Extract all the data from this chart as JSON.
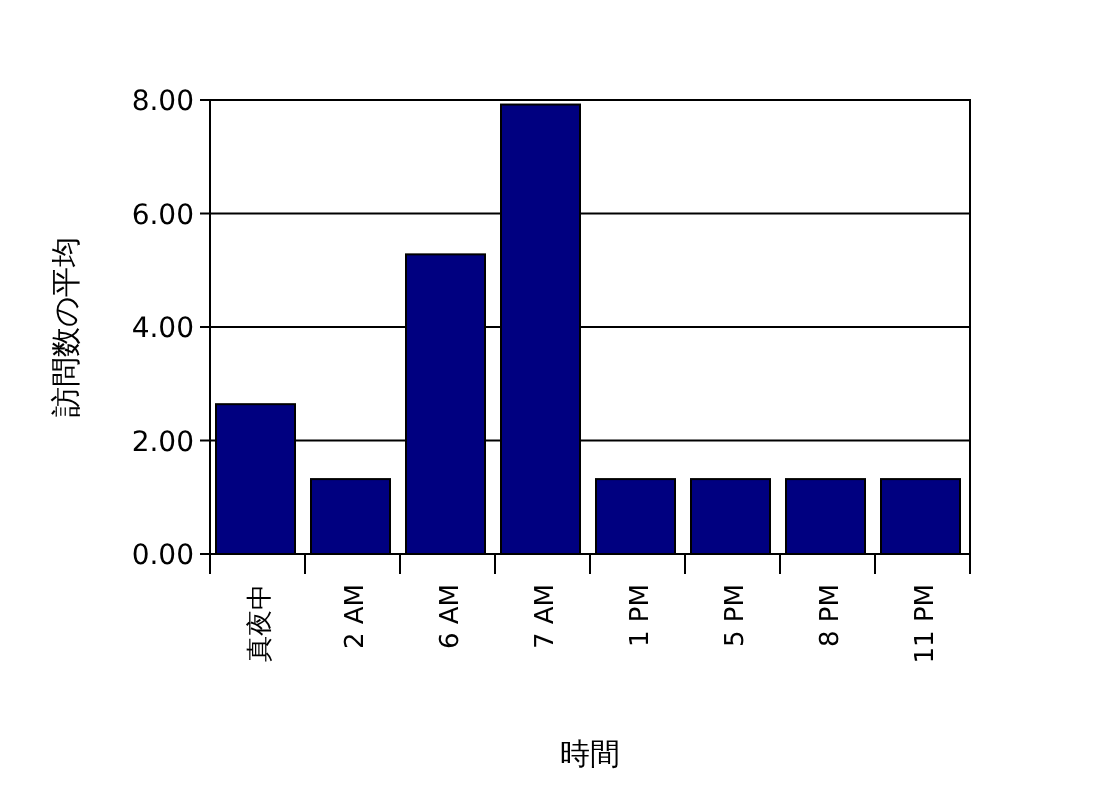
{
  "chart_data": {
    "type": "bar",
    "xlabel": "時間",
    "ylabel": "訪問数の平均",
    "categories": [
      "真夜中",
      "2 AM",
      "6 AM",
      "7 AM",
      "1 PM",
      "5 PM",
      "8 PM",
      "11 PM"
    ],
    "values": [
      2.64,
      1.32,
      5.28,
      7.92,
      1.32,
      1.32,
      1.32,
      1.32
    ],
    "color": "#000080",
    "ylim": [
      0,
      8
    ],
    "yticks": [
      {
        "value": 0,
        "label": "0.00"
      },
      {
        "value": 2,
        "label": "2.00"
      },
      {
        "value": 4,
        "label": "4.00"
      },
      {
        "value": 6,
        "label": "6.00"
      },
      {
        "value": 8,
        "label": "8.00"
      }
    ],
    "grid": "y"
  }
}
